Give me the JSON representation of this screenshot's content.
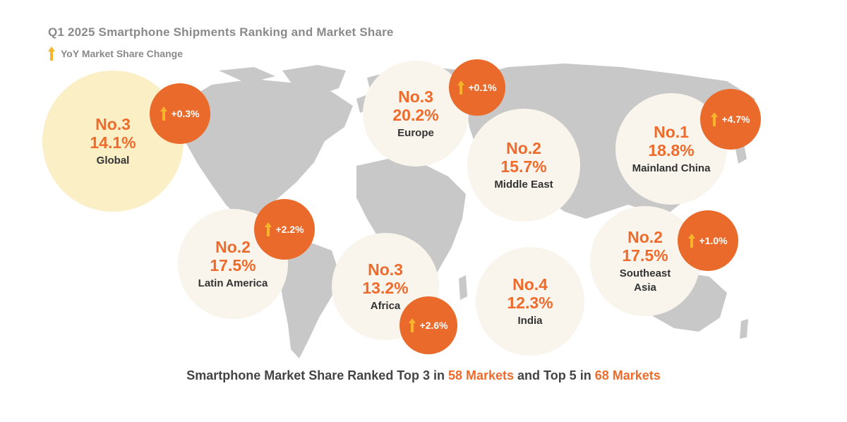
{
  "title": "Q1 2025 Smartphone Shipments Ranking and Market Share",
  "legend": {
    "label": "YoY Market Share Change"
  },
  "colors": {
    "accent": "#ee6b2c",
    "badge": "#ea6a2b",
    "arrow": "#f7b52c",
    "map": "#c8c8c8",
    "bubble": "#f9f4ec",
    "global_bubble": "#fbefc6"
  },
  "regions": [
    {
      "rank": "No.3",
      "share": "14.1%",
      "name": "Global",
      "change": "+0.3%"
    },
    {
      "rank": "No.3",
      "share": "20.2%",
      "name": "Europe",
      "change": "+0.1%"
    },
    {
      "rank": "No.2",
      "share": "15.7%",
      "name": "Middle East"
    },
    {
      "rank": "No.1",
      "share": "18.8%",
      "name": "Mainland China",
      "change": "+4.7%"
    },
    {
      "rank": "No.2",
      "share": "17.5%",
      "name": "Latin America",
      "change": "+2.2%"
    },
    {
      "rank": "No.3",
      "share": "13.2%",
      "name": "Africa",
      "change": "+2.6%"
    },
    {
      "rank": "No.4",
      "share": "12.3%",
      "name": "India"
    },
    {
      "rank": "No.2",
      "share": "17.5%",
      "name_line1": "Southeast",
      "name_line2": "Asia",
      "change": "+1.0%"
    }
  ],
  "footer": {
    "part1": "Smartphone Market Share Ranked Top 3 in ",
    "markets_top3": "58 Markets",
    "part2": " and Top 5 in ",
    "markets_top5": "68 Markets"
  }
}
